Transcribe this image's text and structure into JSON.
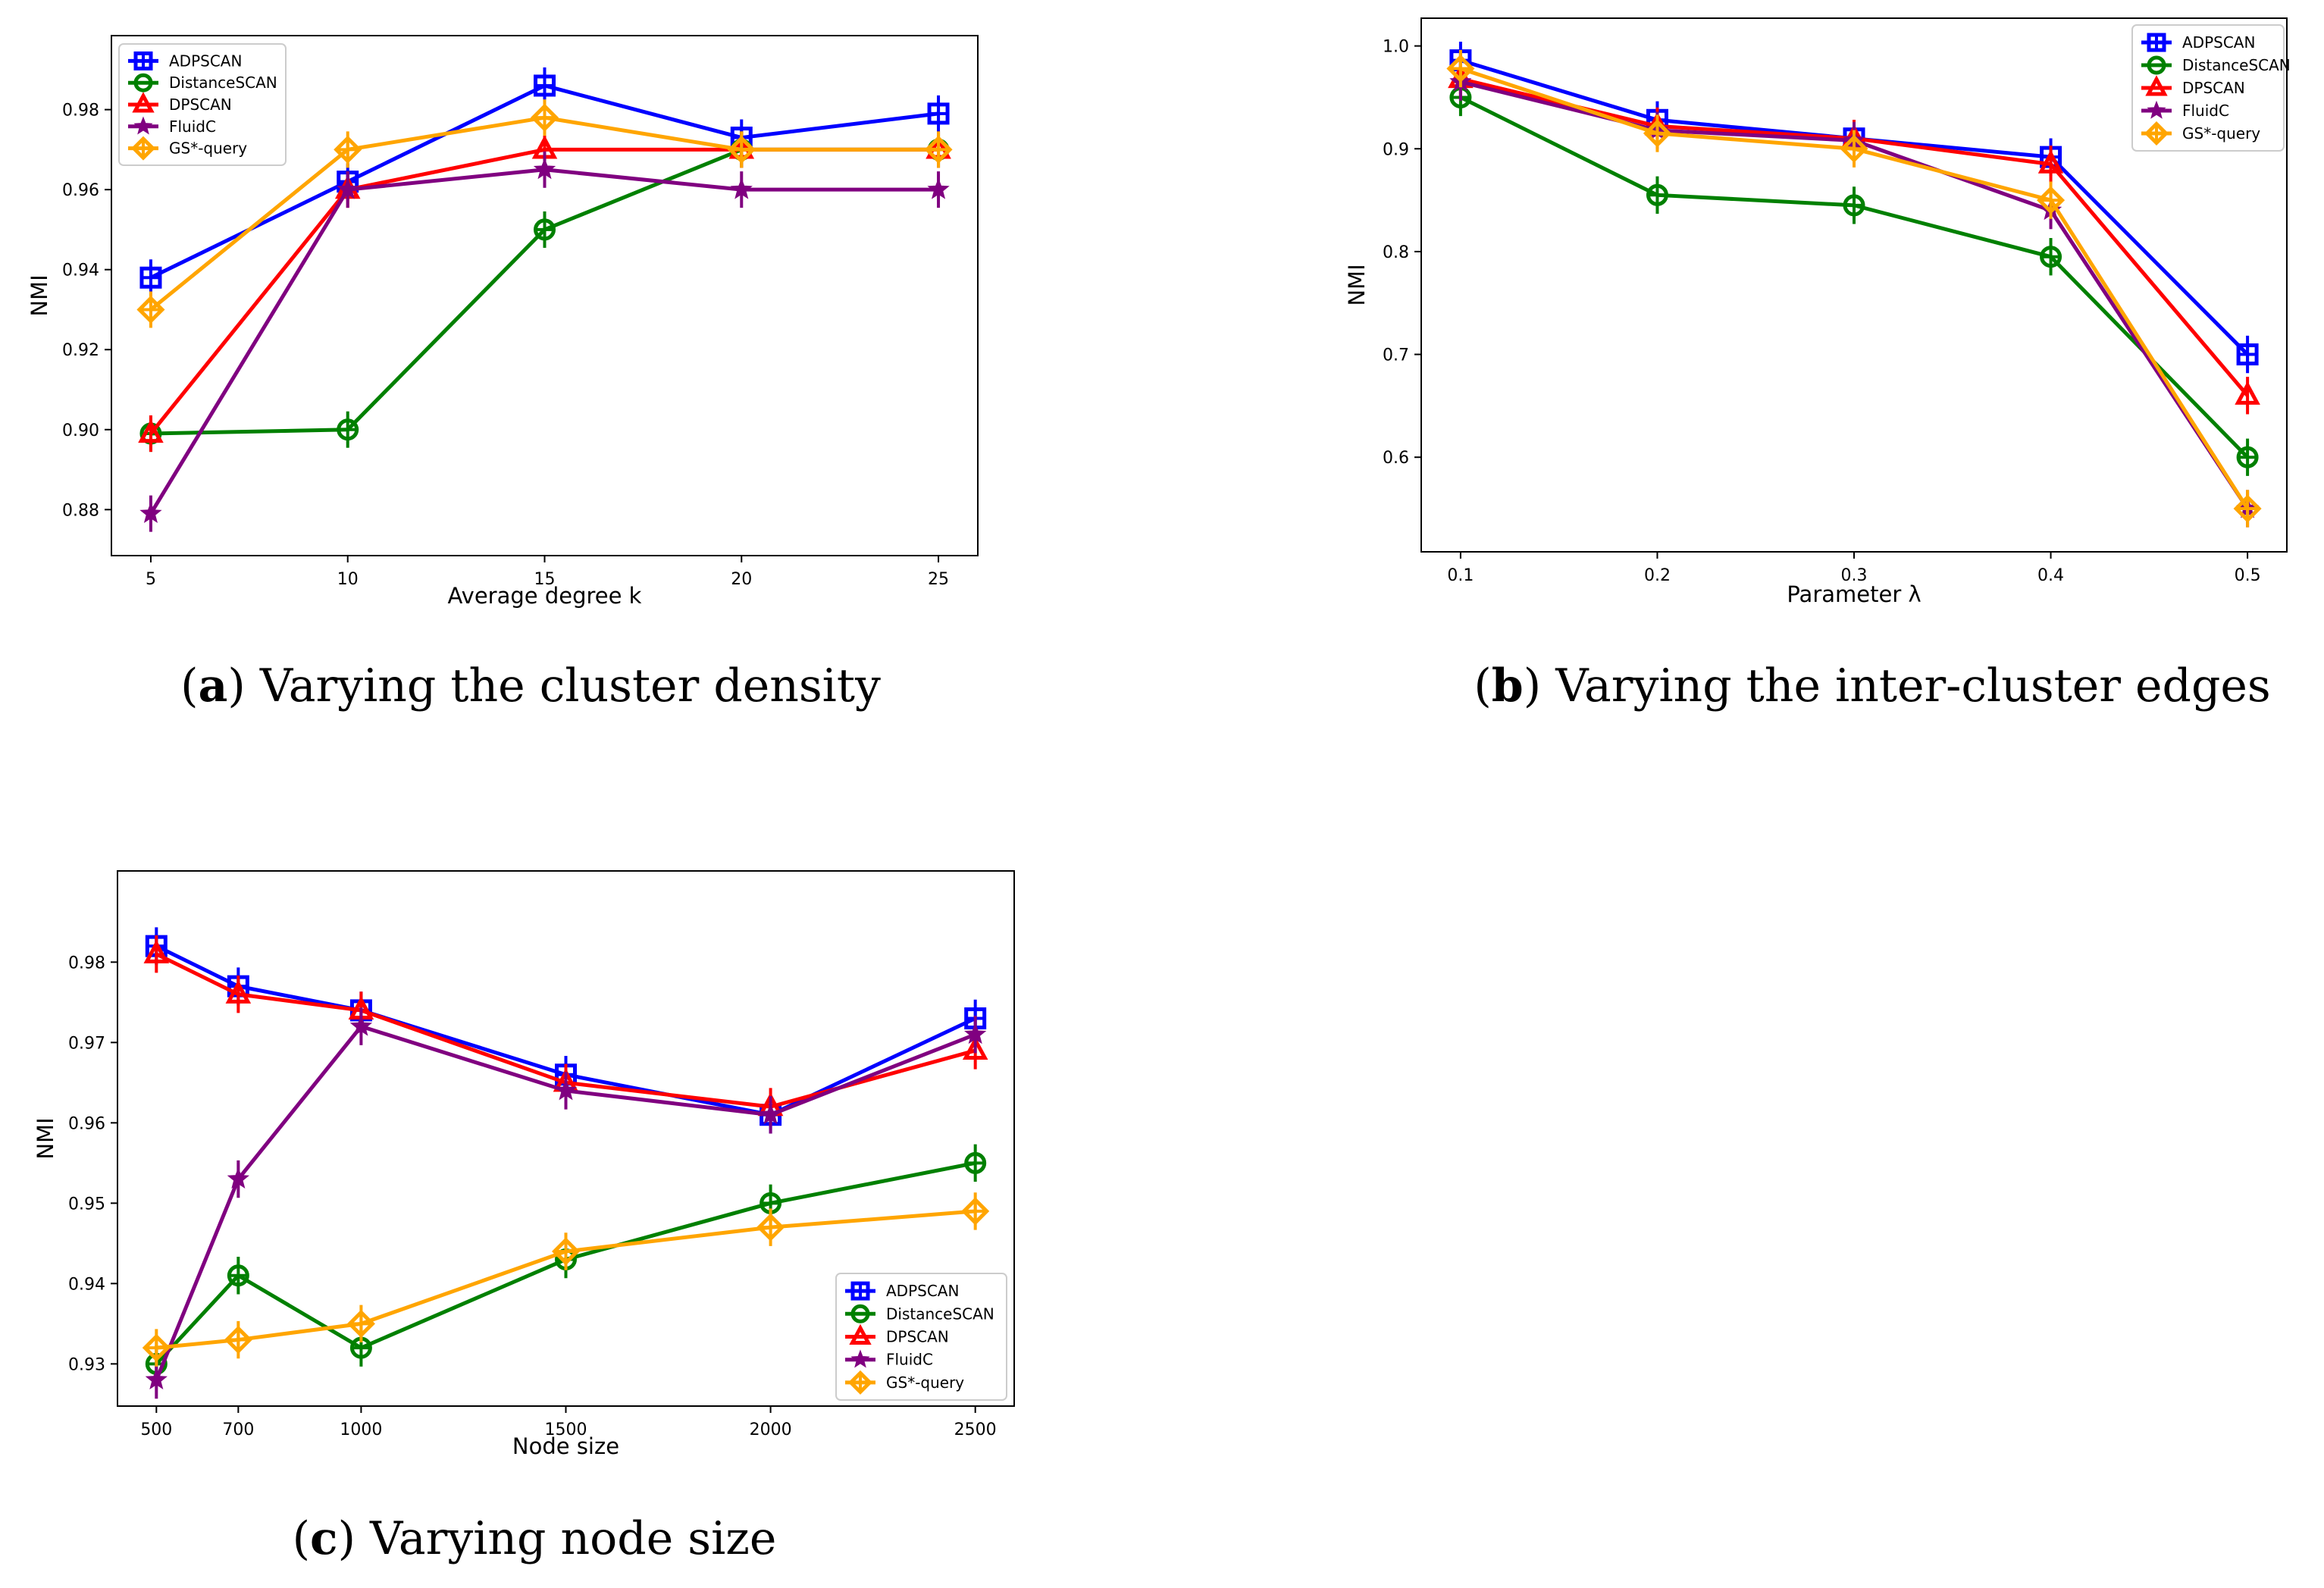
{
  "chart_data": [
    {
      "id": "a",
      "type": "line",
      "caption_letter": "a",
      "caption_text": "Varying the cluster density",
      "xlabel": "Average degree k",
      "ylabel": "NMI",
      "categorical_x": false,
      "x": [
        5,
        10,
        15,
        20,
        25
      ],
      "xticks": [
        "5",
        "10",
        "15",
        "20",
        "25"
      ],
      "xlim": [
        4.0,
        26.0
      ],
      "ylim": [
        0.8685,
        0.9985
      ],
      "yticks": [
        0.88,
        0.9,
        0.92,
        0.94,
        0.96,
        0.98
      ],
      "ytick_labels": [
        "0.88",
        "0.90",
        "0.92",
        "0.94",
        "0.96",
        "0.98"
      ],
      "legend_position": "top-left",
      "series": [
        {
          "name": "ADPSCAN",
          "values": [
            0.938,
            0.962,
            0.986,
            0.973,
            0.979
          ]
        },
        {
          "name": "DistanceSCAN",
          "values": [
            0.899,
            0.9,
            0.95,
            0.97,
            0.97
          ]
        },
        {
          "name": "DPSCAN",
          "values": [
            0.899,
            0.96,
            0.97,
            0.97,
            0.97
          ]
        },
        {
          "name": "FluidC",
          "values": [
            0.879,
            0.96,
            0.965,
            0.96,
            0.96
          ]
        },
        {
          "name": "GS*-query",
          "values": [
            0.93,
            0.97,
            0.978,
            0.97,
            0.97
          ]
        }
      ]
    },
    {
      "id": "b",
      "type": "line",
      "caption_letter": "b",
      "caption_text": "Varying the inter-cluster edges",
      "xlabel": "Parameter λ",
      "ylabel": "NMI",
      "categorical_x": false,
      "x": [
        0.1,
        0.2,
        0.3,
        0.4,
        0.5
      ],
      "xticks": [
        "0.1",
        "0.2",
        "0.3",
        "0.4",
        "0.5"
      ],
      "xlim": [
        0.08,
        0.52
      ],
      "ylim": [
        0.508,
        1.027
      ],
      "yticks": [
        0.6,
        0.7,
        0.8,
        0.9,
        1.0
      ],
      "ytick_labels": [
        "0.6",
        "0.7",
        "0.8",
        "0.9",
        "1.0"
      ],
      "legend_position": "top-right",
      "series": [
        {
          "name": "ADPSCAN",
          "values": [
            0.986,
            0.928,
            0.91,
            0.892,
            0.7
          ]
        },
        {
          "name": "DistanceSCAN",
          "values": [
            0.95,
            0.855,
            0.845,
            0.795,
            0.6
          ]
        },
        {
          "name": "DPSCAN",
          "values": [
            0.968,
            0.922,
            0.91,
            0.885,
            0.66
          ]
        },
        {
          "name": "FluidC",
          "values": [
            0.965,
            0.918,
            0.908,
            0.84,
            0.55
          ]
        },
        {
          "name": "GS*-query",
          "values": [
            0.978,
            0.915,
            0.9,
            0.85,
            0.55
          ]
        }
      ]
    },
    {
      "id": "c",
      "type": "line",
      "caption_letter": "c",
      "caption_text": "Varying node size",
      "xlabel": "Node size",
      "ylabel": "NMI",
      "categorical_x": false,
      "x": [
        500,
        700,
        1000,
        1500,
        2000,
        2500
      ],
      "xticks": [
        "500",
        "700",
        "1000",
        "1500",
        "2000",
        "2500"
      ],
      "xlim": [
        405,
        2595
      ],
      "ylim": [
        0.92475,
        0.99135
      ],
      "yticks": [
        0.93,
        0.94,
        0.95,
        0.96,
        0.97,
        0.98
      ],
      "ytick_labels": [
        "0.93",
        "0.94",
        "0.95",
        "0.96",
        "0.97",
        "0.98"
      ],
      "legend_position": "bottom-right",
      "series": [
        {
          "name": "ADPSCAN",
          "values": [
            0.982,
            0.977,
            0.974,
            0.966,
            0.961,
            0.973
          ]
        },
        {
          "name": "DistanceSCAN",
          "values": [
            0.93,
            0.941,
            0.932,
            0.943,
            0.95,
            0.955
          ]
        },
        {
          "name": "DPSCAN",
          "values": [
            0.981,
            0.976,
            0.974,
            0.965,
            0.962,
            0.969
          ]
        },
        {
          "name": "FluidC",
          "values": [
            0.928,
            0.953,
            0.972,
            0.964,
            0.961,
            0.971
          ]
        },
        {
          "name": "GS*-query",
          "values": [
            0.932,
            0.933,
            0.935,
            0.944,
            0.947,
            0.949
          ]
        }
      ]
    }
  ],
  "styles": {
    "ADPSCAN": {
      "color": "#0000ff",
      "marker": "square"
    },
    "DistanceSCAN": {
      "color": "#008000",
      "marker": "circle"
    },
    "DPSCAN": {
      "color": "#ff0000",
      "marker": "triangle"
    },
    "FluidC": {
      "color": "#800080",
      "marker": "star"
    },
    "GS*-query": {
      "color": "#ffa500",
      "marker": "diamond"
    }
  }
}
